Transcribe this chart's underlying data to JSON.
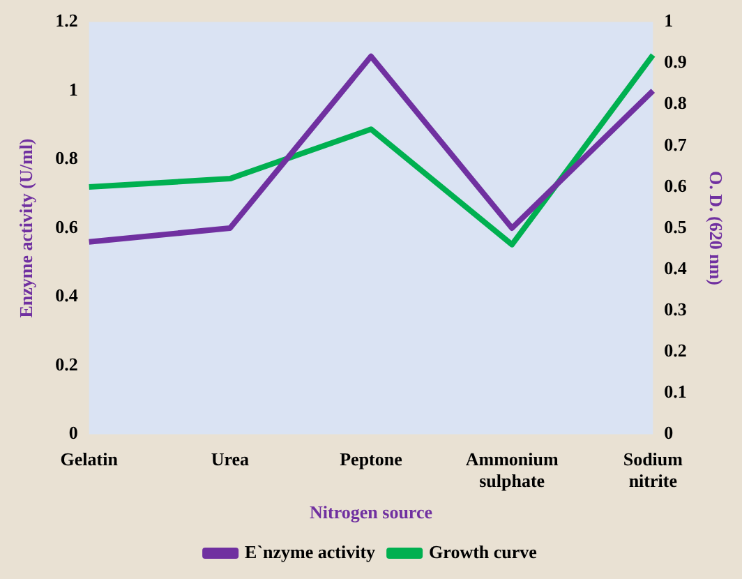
{
  "chart_data": {
    "type": "line",
    "xlabel": "Nitrogen source",
    "ylabel": "Enzyme activity (U/ml)",
    "y2label": "O. D. (620 nm)",
    "categories": [
      "Gelatin",
      "Urea",
      "Peptone",
      "Ammonium sulphate",
      "Sodium nitrite"
    ],
    "series": [
      {
        "name": "E`nzyme activity",
        "color": "#7030a0",
        "values": [
          0.56,
          0.6,
          1.1,
          0.6,
          1.0
        ]
      },
      {
        "name": "Growth curve",
        "color": "#00b050",
        "values": [
          0.6,
          0.62,
          0.74,
          0.46,
          0.92
        ],
        "axis": "y2"
      }
    ],
    "ylim": [
      0,
      1.2
    ],
    "yticks": [
      0,
      0.2,
      0.4,
      0.6,
      0.8,
      1,
      1.2
    ],
    "y2lim": [
      0,
      1
    ],
    "y2ticks": [
      0,
      0.1,
      0.2,
      0.3,
      0.4,
      0.5,
      0.6,
      0.7,
      0.8,
      0.9,
      1
    ],
    "grid": false,
    "legend": "bottom",
    "marker": "none",
    "line_style": "solid"
  }
}
